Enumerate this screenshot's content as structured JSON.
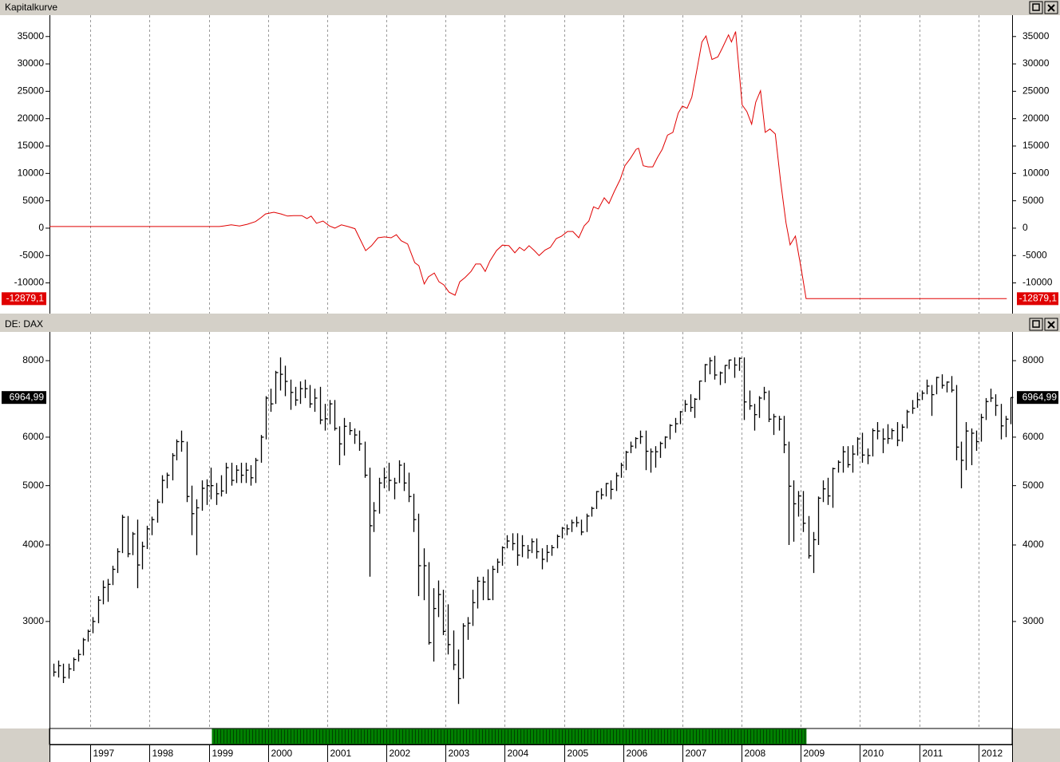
{
  "chart_data": [
    {
      "type": "line",
      "title": "Kapitalkurve",
      "color": "#e00000",
      "x": [
        1996.31,
        1999.18,
        1999.25,
        1999.38,
        1999.52,
        1999.65,
        1999.79,
        1999.88,
        1999.96,
        2000.1,
        2000.22,
        2000.33,
        2000.43,
        2000.57,
        2000.66,
        2000.73,
        2000.82,
        2000.93,
        2001.04,
        2001.13,
        2001.24,
        2001.35,
        2001.47,
        2001.65,
        2001.75,
        2001.86,
        2001.97,
        2002.08,
        2002.17,
        2002.25,
        2002.36,
        2002.48,
        2002.55,
        2002.64,
        2002.71,
        2002.81,
        2002.89,
        2002.97,
        2003.06,
        2003.16,
        2003.24,
        2003.33,
        2003.43,
        2003.51,
        2003.59,
        2003.67,
        2003.75,
        2003.86,
        2003.96,
        2004.07,
        2004.17,
        2004.25,
        2004.33,
        2004.41,
        2004.5,
        2004.58,
        2004.68,
        2004.77,
        2004.87,
        2004.96,
        2005.06,
        2005.15,
        2005.25,
        2005.34,
        2005.42,
        2005.5,
        2005.58,
        2005.68,
        2005.76,
        2005.85,
        2005.95,
        2006.03,
        2006.12,
        2006.22,
        2006.26,
        2006.34,
        2006.42,
        2006.5,
        2006.58,
        2006.66,
        2006.75,
        2006.84,
        2006.93,
        2007.0,
        2007.08,
        2007.16,
        2007.24,
        2007.33,
        2007.4,
        2007.5,
        2007.6,
        2007.68,
        2007.78,
        2007.83,
        2007.9,
        2008.01,
        2008.09,
        2008.17,
        2008.24,
        2008.32,
        2008.4,
        2008.48,
        2008.57,
        2008.66,
        2008.75,
        2008.82,
        2008.91,
        2009.01,
        2009.09,
        2012.48
      ],
      "values": [
        300,
        300,
        400,
        600,
        400,
        700,
        1200,
        1900,
        2600,
        2900,
        2600,
        2200,
        2300,
        2300,
        1750,
        2200,
        900,
        1300,
        400,
        0,
        600,
        300,
        -100,
        -4100,
        -3200,
        -1750,
        -1600,
        -1750,
        -1200,
        -2300,
        -2900,
        -6300,
        -6850,
        -10200,
        -8900,
        -8200,
        -9800,
        -10350,
        -11700,
        -12250,
        -9800,
        -9000,
        -7900,
        -6550,
        -6550,
        -7900,
        -6000,
        -4100,
        -3100,
        -3200,
        -4500,
        -3500,
        -4100,
        -3200,
        -4100,
        -5000,
        -4000,
        -3500,
        -1900,
        -1450,
        -600,
        -600,
        -1750,
        400,
        1300,
        3900,
        3500,
        5550,
        4500,
        6700,
        8900,
        11400,
        12700,
        14400,
        14600,
        11400,
        11200,
        11200,
        12900,
        14400,
        17000,
        17500,
        21000,
        22300,
        21900,
        23900,
        28600,
        34000,
        35100,
        30800,
        31300,
        33000,
        35300,
        34000,
        35900,
        22500,
        21300,
        19000,
        23000,
        25100,
        17500,
        18100,
        17200,
        8500,
        1000,
        -3060,
        -1450,
        -7600,
        -12879.1,
        -12879.1
      ],
      "last_value": {
        "value": -12879.1,
        "label": "-12879,1"
      },
      "xlim": [
        1996.31,
        2012.57
      ],
      "ylim": [
        -15600,
        38900
      ],
      "yticks": [
        -10000,
        -5000,
        0,
        5000,
        10000,
        15000,
        20000,
        25000,
        30000,
        35000
      ]
    },
    {
      "type": "ohlc",
      "title": "DE: DAX",
      "color": "#000000",
      "log_scale": true,
      "x": [
        1996.38,
        1996.46,
        1996.54,
        1996.63,
        1996.71,
        1996.79,
        1996.88,
        1996.96,
        1997.04,
        1997.13,
        1997.21,
        1997.29,
        1997.38,
        1997.46,
        1997.54,
        1997.63,
        1997.71,
        1997.79,
        1997.88,
        1997.96,
        1998.04,
        1998.13,
        1998.21,
        1998.29,
        1998.38,
        1998.46,
        1998.54,
        1998.63,
        1998.71,
        1998.79,
        1998.88,
        1998.96,
        1999.04,
        1999.13,
        1999.21,
        1999.29,
        1999.38,
        1999.46,
        1999.54,
        1999.63,
        1999.71,
        1999.79,
        1999.88,
        1999.96,
        2000.04,
        2000.13,
        2000.21,
        2000.29,
        2000.38,
        2000.46,
        2000.54,
        2000.63,
        2000.71,
        2000.79,
        2000.88,
        2000.96,
        2001.04,
        2001.13,
        2001.21,
        2001.29,
        2001.38,
        2001.46,
        2001.54,
        2001.63,
        2001.71,
        2001.79,
        2001.88,
        2001.96,
        2002.04,
        2002.13,
        2002.21,
        2002.29,
        2002.38,
        2002.46,
        2002.54,
        2002.63,
        2002.71,
        2002.79,
        2002.88,
        2002.96,
        2003.04,
        2003.13,
        2003.21,
        2003.29,
        2003.38,
        2003.46,
        2003.54,
        2003.63,
        2003.71,
        2003.79,
        2003.88,
        2003.96,
        2004.04,
        2004.13,
        2004.21,
        2004.29,
        2004.38,
        2004.46,
        2004.54,
        2004.63,
        2004.71,
        2004.79,
        2004.88,
        2004.96,
        2005.04,
        2005.13,
        2005.21,
        2005.29,
        2005.38,
        2005.46,
        2005.54,
        2005.63,
        2005.71,
        2005.79,
        2005.88,
        2005.96,
        2006.04,
        2006.13,
        2006.21,
        2006.29,
        2006.38,
        2006.46,
        2006.54,
        2006.63,
        2006.71,
        2006.79,
        2006.88,
        2006.96,
        2007.04,
        2007.13,
        2007.21,
        2007.29,
        2007.38,
        2007.46,
        2007.54,
        2007.63,
        2007.71,
        2007.79,
        2007.88,
        2007.96,
        2008.04,
        2008.13,
        2008.21,
        2008.29,
        2008.38,
        2008.46,
        2008.54,
        2008.63,
        2008.71,
        2008.79,
        2008.88,
        2008.96,
        2009.04,
        2009.13,
        2009.21,
        2009.29,
        2009.38,
        2009.46,
        2009.54,
        2009.63,
        2009.71,
        2009.79,
        2009.88,
        2009.96,
        2010.04,
        2010.13,
        2010.21,
        2010.29,
        2010.38,
        2010.46,
        2010.54,
        2010.63,
        2010.71,
        2010.79,
        2010.88,
        2010.96,
        2011.04,
        2011.13,
        2011.21,
        2011.29,
        2011.38,
        2011.46,
        2011.54,
        2011.63,
        2011.71,
        2011.79,
        2011.88,
        2011.96,
        2012.04,
        2012.13,
        2012.21,
        2012.29,
        2012.38,
        2012.46,
        2012.54
      ],
      "high": [
        2560,
        2590,
        2560,
        2560,
        2620,
        2700,
        2820,
        2910,
        3050,
        3300,
        3500,
        3520,
        3700,
        3950,
        4480,
        4460,
        4200,
        4400,
        4050,
        4300,
        4450,
        4750,
        5200,
        5250,
        5650,
        5950,
        6150,
        5900,
        5000,
        4750,
        5100,
        5120,
        5350,
        5050,
        5200,
        5450,
        5450,
        5400,
        5450,
        5450,
        5400,
        5550,
        6050,
        7000,
        7200,
        7700,
        8100,
        7850,
        7450,
        7250,
        7400,
        7450,
        7300,
        7200,
        7250,
        6800,
        6900,
        6900,
        6250,
        6450,
        6350,
        6200,
        6150,
        5900,
        5350,
        4700,
        5150,
        5350,
        5450,
        5150,
        5500,
        5450,
        5250,
        4850,
        4500,
        3950,
        3750,
        3400,
        3500,
        3380,
        3200,
        2900,
        2700,
        2980,
        3050,
        3380,
        3550,
        3550,
        3650,
        3700,
        3800,
        3980,
        4150,
        4180,
        4180,
        4150,
        4000,
        4100,
        4100,
        3950,
        4000,
        4000,
        4160,
        4280,
        4320,
        4400,
        4450,
        4400,
        4500,
        4620,
        4900,
        4950,
        5050,
        5100,
        5250,
        5450,
        5700,
        5900,
        6000,
        6150,
        6150,
        5750,
        5800,
        5900,
        6020,
        6300,
        6450,
        6620,
        6900,
        7050,
        6950,
        7420,
        7900,
        8100,
        8150,
        7680,
        7870,
        8030,
        8100,
        8100,
        8100,
        7150,
        6800,
        7000,
        7250,
        7150,
        6550,
        6500,
        6500,
        5900,
        5100,
        4900,
        4900,
        4460,
        4200,
        4800,
        5100,
        5150,
        5350,
        5500,
        5800,
        5800,
        5820,
        6000,
        6100,
        5750,
        6200,
        6350,
        6200,
        6300,
        6200,
        6350,
        6300,
        6650,
        6900,
        7100,
        7150,
        7450,
        7300,
        7530,
        7600,
        7400,
        7550,
        7300,
        5900,
        6350,
        6200,
        6150,
        6550,
        6950,
        7200,
        7050,
        6800,
        6500,
        6970
      ],
      "low": [
        2440,
        2430,
        2380,
        2420,
        2490,
        2580,
        2640,
        2780,
        2870,
        2980,
        3200,
        3230,
        3440,
        3600,
        3880,
        3820,
        3850,
        3400,
        3650,
        3940,
        4150,
        4350,
        4680,
        4950,
        5100,
        5500,
        5680,
        4700,
        4150,
        3850,
        4550,
        4650,
        4750,
        4650,
        4800,
        4850,
        5000,
        5050,
        5050,
        5050,
        5000,
        5050,
        5450,
        5950,
        6600,
        6800,
        7150,
        7000,
        6650,
        6750,
        6800,
        6950,
        6700,
        6600,
        6300,
        6150,
        6300,
        6150,
        5400,
        5600,
        6050,
        5850,
        5700,
        5150,
        3550,
        4200,
        4500,
        4950,
        4900,
        4750,
        5050,
        4900,
        4700,
        4200,
        3300,
        3250,
        2750,
        2580,
        3050,
        2850,
        2650,
        2500,
        2200,
        2420,
        2800,
        2950,
        3150,
        3250,
        3250,
        3250,
        3600,
        3700,
        3950,
        3920,
        3700,
        3820,
        3800,
        3880,
        3800,
        3650,
        3750,
        3840,
        3950,
        4100,
        4150,
        4200,
        4280,
        4150,
        4200,
        4450,
        4580,
        4750,
        4800,
        4750,
        4900,
        5150,
        5300,
        5650,
        5750,
        5850,
        5300,
        5250,
        5350,
        5550,
        5750,
        5950,
        6100,
        6300,
        6600,
        6600,
        6450,
        6900,
        7380,
        7600,
        7450,
        7300,
        7350,
        7750,
        7500,
        7700,
        6400,
        6650,
        6150,
        6450,
        6900,
        6350,
        6050,
        6150,
        5650,
        4000,
        4050,
        4450,
        4200,
        3800,
        3600,
        4000,
        4700,
        4650,
        4600,
        5250,
        5250,
        5350,
        5250,
        5600,
        5450,
        5420,
        5580,
        5950,
        5650,
        5850,
        5950,
        5800,
        5900,
        6200,
        6550,
        6700,
        6900,
        7050,
        6500,
        7050,
        7200,
        7100,
        7100,
        5500,
        4950,
        5300,
        5400,
        5700,
        5900,
        6400,
        6850,
        6500,
        5950,
        6000,
        6300
      ],
      "close": [
        2480,
        2540,
        2430,
        2510,
        2600,
        2650,
        2800,
        2890,
        3000,
        3250,
        3410,
        3450,
        3650,
        3900,
        4440,
        3870,
        4170,
        3710,
        3980,
        4250,
        4400,
        4700,
        5100,
        5200,
        5600,
        5900,
        5900,
        4800,
        4500,
        4600,
        4950,
        5000,
        5000,
        4850,
        4900,
        5350,
        5100,
        5300,
        5200,
        5300,
        5150,
        5500,
        6000,
        6950,
        6800,
        7650,
        7600,
        7400,
        7100,
        6900,
        7200,
        7200,
        6800,
        6950,
        6400,
        6430,
        6800,
        6200,
        5850,
        6250,
        6150,
        6050,
        5850,
        5200,
        4300,
        4550,
        5050,
        5150,
        5100,
        5050,
        5400,
        5050,
        4800,
        4400,
        3700,
        3700,
        2770,
        3150,
        3320,
        2890,
        2750,
        2550,
        2420,
        2950,
        2980,
        3220,
        3490,
        3480,
        3260,
        3650,
        3750,
        3960,
        4060,
        4020,
        3850,
        3990,
        3920,
        4050,
        3900,
        3790,
        3890,
        3960,
        4130,
        4260,
        4250,
        4350,
        4350,
        4200,
        4460,
        4590,
        4890,
        4830,
        5040,
        4930,
        5190,
        5400,
        5670,
        5800,
        5970,
        6010,
        5690,
        5680,
        5680,
        5860,
        6000,
        6270,
        6310,
        6600,
        6790,
        6710,
        6920,
        7410,
        7880,
        8000,
        7580,
        7640,
        7860,
        8020,
        7870,
        8070,
        6850,
        6750,
        6530,
        6950,
        7100,
        6420,
        6480,
        6420,
        5830,
        4990,
        4670,
        4810,
        4340,
        3840,
        4080,
        4770,
        4940,
        4810,
        5330,
        5460,
        5680,
        5410,
        5630,
        5960,
        5610,
        5600,
        6150,
        6140,
        5960,
        5970,
        6150,
        5930,
        6230,
        6600,
        6690,
        6910,
        7080,
        7270,
        7040,
        7510,
        7290,
        7380,
        7160,
        5780,
        5500,
        6140,
        6090,
        5900,
        6460,
        6860,
        6950,
        6760,
        6260,
        6420,
        6965
      ],
      "last_value": {
        "value": 6964.99,
        "label": "6964,99"
      },
      "position": {
        "start": 1999.06,
        "end": 2009.09,
        "color": "#008000"
      },
      "xlim": [
        1996.31,
        2012.57
      ],
      "ylim": [
        2006,
        8913
      ],
      "xticks": [
        1997,
        1998,
        1999,
        2000,
        2001,
        2002,
        2003,
        2004,
        2005,
        2006,
        2007,
        2008,
        2009,
        2010,
        2011,
        2012
      ],
      "yticks": [
        3000,
        4000,
        5000,
        6000,
        8000
      ]
    }
  ]
}
